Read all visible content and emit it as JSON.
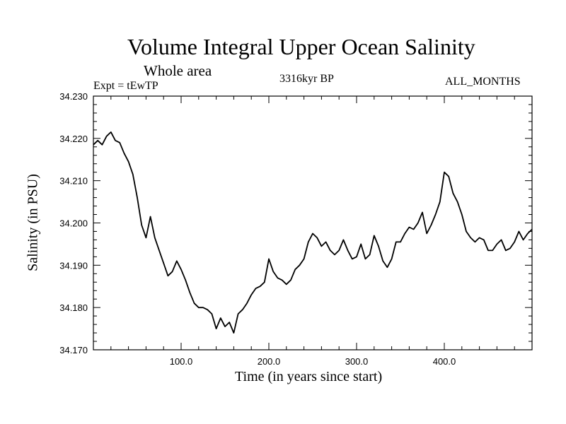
{
  "title": "Volume Integral Upper Ocean Salinity",
  "subtitle": "Whole area",
  "expt_label": "Expt = tEwTP",
  "period_label": "3316kyr BP",
  "months_label": "ALL_MONTHS",
  "chart_data": {
    "type": "line",
    "title": "Volume Integral Upper Ocean Salinity",
    "xlabel": "Time (in years since start)",
    "ylabel": "Salinity (in PSU)",
    "xlim": [
      0,
      500
    ],
    "ylim": [
      34.17,
      34.23
    ],
    "xticks": [
      100,
      200,
      300,
      400
    ],
    "xtick_labels": [
      "100.0",
      "200.0",
      "300.0",
      "400.0"
    ],
    "yticks": [
      34.17,
      34.18,
      34.19,
      34.2,
      34.21,
      34.22,
      34.23
    ],
    "ytick_labels": [
      "34.170",
      "34.180",
      "34.190",
      "34.200",
      "34.210",
      "34.220",
      "34.230"
    ],
    "grid": false,
    "series": [
      {
        "name": "Salinity",
        "x": [
          0,
          5,
          10,
          15,
          20,
          25,
          30,
          35,
          40,
          45,
          50,
          55,
          60,
          65,
          70,
          75,
          80,
          85,
          90,
          95,
          100,
          105,
          110,
          115,
          120,
          125,
          130,
          135,
          140,
          145,
          150,
          155,
          160,
          165,
          170,
          175,
          180,
          185,
          190,
          195,
          200,
          205,
          210,
          215,
          220,
          225,
          230,
          235,
          240,
          245,
          250,
          255,
          260,
          265,
          270,
          275,
          280,
          285,
          290,
          295,
          300,
          305,
          310,
          315,
          320,
          325,
          330,
          335,
          340,
          345,
          350,
          355,
          360,
          365,
          370,
          375,
          380,
          385,
          390,
          395,
          400,
          405,
          410,
          415,
          420,
          425,
          430,
          435,
          440,
          445,
          450,
          455,
          460,
          465,
          470,
          475,
          480,
          485,
          490,
          495,
          500
        ],
        "values": [
          34.2185,
          34.2195,
          34.2185,
          34.2205,
          34.2215,
          34.2195,
          34.219,
          34.2165,
          34.2145,
          34.2115,
          34.206,
          34.1995,
          34.1965,
          34.2015,
          34.1965,
          34.1935,
          34.1905,
          34.1875,
          34.1885,
          34.191,
          34.189,
          34.1865,
          34.1835,
          34.181,
          34.18,
          34.18,
          34.1795,
          34.1785,
          34.175,
          34.1775,
          34.1755,
          34.1765,
          34.174,
          34.1785,
          34.1795,
          34.181,
          34.183,
          34.1845,
          34.185,
          34.186,
          34.1915,
          34.1885,
          34.187,
          34.1865,
          34.1855,
          34.1865,
          34.189,
          34.19,
          34.1915,
          34.1955,
          34.1975,
          34.1965,
          34.1945,
          34.1955,
          34.1935,
          34.1925,
          34.1935,
          34.196,
          34.1935,
          34.1915,
          34.192,
          34.195,
          34.1915,
          34.1925,
          34.197,
          34.1945,
          34.191,
          34.1895,
          34.1915,
          34.1955,
          34.1955,
          34.1975,
          34.199,
          34.1985,
          34.2,
          34.2025,
          34.1975,
          34.1995,
          34.202,
          34.205,
          34.212,
          34.211,
          34.207,
          34.205,
          34.202,
          34.198,
          34.1965,
          34.1955,
          34.1965,
          34.196,
          34.1935,
          34.1935,
          34.195,
          34.196,
          34.1935,
          34.194,
          34.1955,
          34.198,
          34.196,
          34.1975,
          34.1985
        ]
      }
    ]
  }
}
